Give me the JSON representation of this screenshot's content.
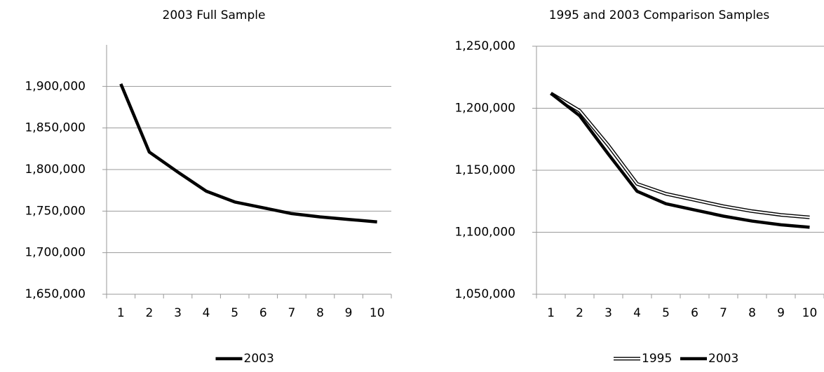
{
  "chart_data": [
    {
      "type": "line",
      "title": "2003 Full Sample",
      "categories": [
        1,
        2,
        3,
        4,
        5,
        6,
        7,
        8,
        9,
        10
      ],
      "series": [
        {
          "name": "2003",
          "color": "#000000",
          "style": "solid",
          "values": [
            1903000,
            1821000,
            1797000,
            1774000,
            1761000,
            1754000,
            1747000,
            1743000,
            1740000,
            1737000
          ]
        }
      ],
      "ylim": [
        1650000,
        1950000
      ],
      "yticks": [
        {
          "value": 1650000,
          "label": "1,650,000"
        },
        {
          "value": 1700000,
          "label": "1,700,000"
        },
        {
          "value": 1750000,
          "label": "1,750,000"
        },
        {
          "value": 1800000,
          "label": "1,800,000"
        },
        {
          "value": 1850000,
          "label": "1,850,000"
        },
        {
          "value": 1900000,
          "label": "1,900,000"
        }
      ],
      "grid": true,
      "legend": "bottom"
    },
    {
      "type": "line",
      "title": "1995 and 2003 Comparison Samples",
      "categories": [
        1,
        2,
        3,
        4,
        5,
        6,
        7,
        8,
        9,
        10
      ],
      "series": [
        {
          "name": "1995",
          "color": "#000000",
          "style": "double",
          "values": [
            1212000,
            1198000,
            1170000,
            1139000,
            1131000,
            1126000,
            1121000,
            1117000,
            1114000,
            1112000
          ]
        },
        {
          "name": "2003",
          "color": "#000000",
          "style": "solid",
          "values": [
            1212000,
            1194000,
            1163000,
            1133000,
            1123000,
            1118000,
            1113000,
            1109000,
            1106000,
            1104000
          ]
        }
      ],
      "ylim": [
        1050000,
        1250000
      ],
      "yticks": [
        {
          "value": 1050000,
          "label": "1,050,000"
        },
        {
          "value": 1100000,
          "label": "1,100,000"
        },
        {
          "value": 1150000,
          "label": "1,150,000"
        },
        {
          "value": 1200000,
          "label": "1,200,000"
        },
        {
          "value": 1250000,
          "label": "1,250,000"
        }
      ],
      "grid": true,
      "legend": "bottom"
    }
  ]
}
